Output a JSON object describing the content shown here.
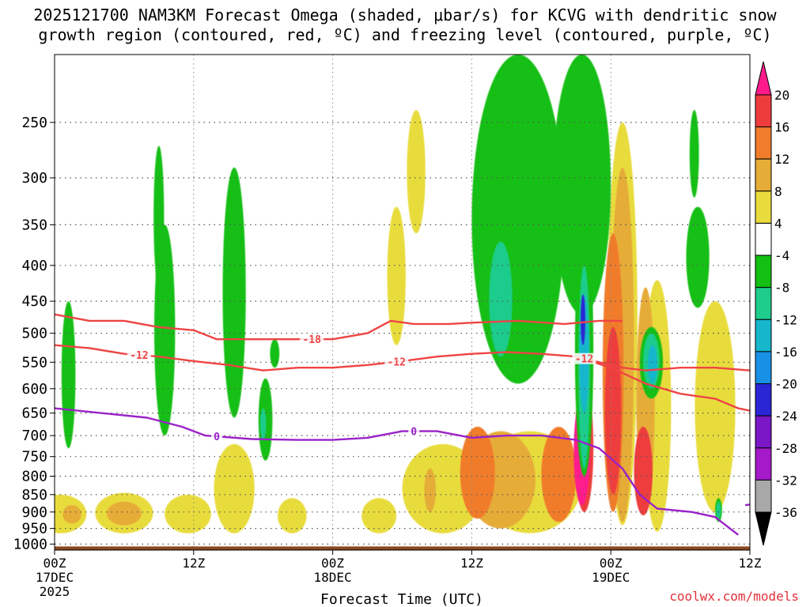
{
  "title_line1": "2025121700 NAM3KM Forecast Omega (shaded, μbar/s) for KCVG with dendritic snow",
  "title_line2": "growth region (contoured, red, ºC) and freezing level (contoured, purple, ºC)",
  "credit": "coolwx.com/models",
  "chart_data": {
    "type": "heatmap",
    "title": "2025121700 NAM3KM Forecast Omega (shaded, μbar/s) for KCVG with dendritic snow growth region (contoured, red, ºC) and freezing level (contoured, purple, ºC)",
    "xlabel": "Forecast Time (UTC)",
    "ylabel": "",
    "x_range_hours": [
      0,
      60
    ],
    "y_range_hpa": [
      200,
      1020
    ],
    "y_scale": "log-pressure",
    "x_ticks": [
      {
        "hour": 0,
        "label": "00Z",
        "sub": "17DEC",
        "sub2": "2025"
      },
      {
        "hour": 12,
        "label": "12Z",
        "sub": "",
        "sub2": ""
      },
      {
        "hour": 24,
        "label": "00Z",
        "sub": "18DEC",
        "sub2": ""
      },
      {
        "hour": 36,
        "label": "12Z",
        "sub": "",
        "sub2": ""
      },
      {
        "hour": 48,
        "label": "00Z",
        "sub": "19DEC",
        "sub2": ""
      },
      {
        "hour": 60,
        "label": "12Z",
        "sub": "",
        "sub2": ""
      }
    ],
    "y_ticks": [
      {
        "p": 250,
        "label": "250"
      },
      {
        "p": 300,
        "label": "300"
      },
      {
        "p": 350,
        "label": "350"
      },
      {
        "p": 400,
        "label": "400"
      },
      {
        "p": 450,
        "label": "450"
      },
      {
        "p": 500,
        "label": "500"
      },
      {
        "p": 550,
        "label": "550"
      },
      {
        "p": 600,
        "label": "600"
      },
      {
        "p": 650,
        "label": "650"
      },
      {
        "p": 700,
        "label": "700"
      },
      {
        "p": 750,
        "label": "750"
      },
      {
        "p": 800,
        "label": "800"
      },
      {
        "p": 850,
        "label": "850"
      },
      {
        "p": 900,
        "label": "900"
      },
      {
        "p": 950,
        "label": "950"
      },
      {
        "p": 1000,
        "label": "1000"
      }
    ],
    "grid": true,
    "legend": "colorbar-right",
    "colorbar": {
      "bands": [
        {
          "color": "#ff1a8c",
          "label": "20"
        },
        {
          "color": "#ee3c3c",
          "label": "16"
        },
        {
          "color": "#f07c2c",
          "label": "12"
        },
        {
          "color": "#e6ac38",
          "label": "8"
        },
        {
          "color": "#e8dc3c",
          "label": "4"
        },
        {
          "color": "#ffffff",
          "label": "-4"
        },
        {
          "color": "#12bf12",
          "label": "-8"
        },
        {
          "color": "#1ecc8c",
          "label": "-12"
        },
        {
          "color": "#16b6cc",
          "label": "-16"
        },
        {
          "color": "#1890e6",
          "label": "-20"
        },
        {
          "color": "#2a26d6",
          "label": "-24"
        },
        {
          "color": "#7a16c6",
          "label": "-28"
        },
        {
          "color": "#a41ac8",
          "label": "-32"
        },
        {
          "color": "#a8a8a8",
          "label": "-36"
        },
        {
          "color": "#000000",
          "label": ""
        }
      ]
    },
    "ground_level_hpa": 1008,
    "ground_color": "#8b4720",
    "omega_features": [
      {
        "cat": "pos1",
        "h": 0.5,
        "p": 900,
        "w": 4.5,
        "ptop": 850,
        "pbot": 965
      },
      {
        "cat": "pos1",
        "h": 6.0,
        "p": 900,
        "w": 5.0,
        "ptop": 845,
        "pbot": 965
      },
      {
        "cat": "pos1",
        "h": 11.5,
        "p": 900,
        "w": 4.0,
        "ptop": 850,
        "pbot": 965
      },
      {
        "cat": "pos1",
        "h": 15.5,
        "p": 880,
        "w": 3.5,
        "ptop": 720,
        "pbot": 965
      },
      {
        "cat": "pos1",
        "h": 20.5,
        "p": 910,
        "w": 2.5,
        "ptop": 860,
        "pbot": 965
      },
      {
        "cat": "pos2",
        "h": 6.0,
        "p": 905,
        "w": 3.0,
        "ptop": 870,
        "pbot": 940
      },
      {
        "cat": "pos2",
        "h": 1.5,
        "p": 905,
        "w": 1.6,
        "ptop": 880,
        "pbot": 935
      },
      {
        "cat": "pos1",
        "h": 28.0,
        "p": 905,
        "w": 3.0,
        "ptop": 860,
        "pbot": 965
      },
      {
        "cat": "pos1",
        "h": 29.5,
        "p": 420,
        "w": 1.6,
        "ptop": 330,
        "pbot": 520
      },
      {
        "cat": "pos1",
        "h": 31.2,
        "p": 300,
        "w": 1.6,
        "ptop": 240,
        "pbot": 360
      },
      {
        "cat": "pos1",
        "h": 33.5,
        "p": 860,
        "w": 7.0,
        "ptop": 720,
        "pbot": 965
      },
      {
        "cat": "pos1",
        "h": 41.0,
        "p": 840,
        "w": 9.0,
        "ptop": 690,
        "pbot": 965
      },
      {
        "cat": "pos1",
        "h": 49.0,
        "p": 540,
        "w": 2.6,
        "ptop": 250,
        "pbot": 940
      },
      {
        "cat": "pos1",
        "h": 52.0,
        "p": 560,
        "w": 2.4,
        "ptop": 420,
        "pbot": 960
      },
      {
        "cat": "pos1",
        "h": 57.0,
        "p": 600,
        "w": 3.5,
        "ptop": 450,
        "pbot": 900
      },
      {
        "cat": "pos2",
        "h": 32.4,
        "p": 860,
        "w": 1.0,
        "ptop": 780,
        "pbot": 900
      },
      {
        "cat": "pos2",
        "h": 38.5,
        "p": 800,
        "w": 6.0,
        "ptop": 690,
        "pbot": 950
      },
      {
        "cat": "pos3",
        "h": 36.5,
        "p": 780,
        "w": 3.0,
        "ptop": 680,
        "pbot": 920
      },
      {
        "cat": "pos3",
        "h": 43.5,
        "p": 820,
        "w": 3.0,
        "ptop": 680,
        "pbot": 930
      },
      {
        "cat": "pos2",
        "h": 49.0,
        "p": 560,
        "w": 2.0,
        "ptop": 290,
        "pbot": 930
      },
      {
        "cat": "pos2",
        "h": 51.0,
        "p": 620,
        "w": 1.6,
        "ptop": 430,
        "pbot": 900
      },
      {
        "cat": "pos3",
        "h": 48.2,
        "p": 580,
        "w": 1.8,
        "ptop": 360,
        "pbot": 900
      },
      {
        "cat": "pos4",
        "h": 48.2,
        "p": 600,
        "w": 1.4,
        "ptop": 490,
        "pbot": 850
      },
      {
        "cat": "pos4",
        "h": 45.7,
        "p": 710,
        "w": 1.6,
        "ptop": 590,
        "pbot": 900
      },
      {
        "cat": "pos5",
        "h": 45.5,
        "p": 760,
        "w": 1.4,
        "ptop": 620,
        "pbot": 880
      },
      {
        "cat": "pos5",
        "h": 50.8,
        "p": 820,
        "w": 1.2,
        "ptop": 700,
        "pbot": 900
      },
      {
        "cat": "pos4",
        "h": 50.8,
        "p": 800,
        "w": 1.6,
        "ptop": 680,
        "pbot": 910
      },
      {
        "cat": "neg1",
        "h": 1.2,
        "p": 600,
        "w": 1.2,
        "ptop": 450,
        "pbot": 730
      },
      {
        "cat": "neg1",
        "h": 9.0,
        "p": 360,
        "w": 0.9,
        "ptop": 270,
        "pbot": 430
      },
      {
        "cat": "neg1",
        "h": 9.5,
        "p": 570,
        "w": 1.8,
        "ptop": 350,
        "pbot": 700
      },
      {
        "cat": "neg1",
        "h": 15.5,
        "p": 460,
        "w": 2.0,
        "ptop": 290,
        "pbot": 660
      },
      {
        "cat": "neg1",
        "h": 18.2,
        "p": 650,
        "w": 1.2,
        "ptop": 580,
        "pbot": 760
      },
      {
        "cat": "neg1",
        "h": 19.0,
        "p": 535,
        "w": 0.8,
        "ptop": 510,
        "pbot": 560
      },
      {
        "cat": "neg2",
        "h": 18.0,
        "p": 670,
        "w": 0.5,
        "ptop": 640,
        "pbot": 710
      },
      {
        "cat": "neg1",
        "h": 40.0,
        "p": 380,
        "w": 8.0,
        "ptop": 200,
        "pbot": 590
      },
      {
        "cat": "neg1",
        "h": 45.5,
        "p": 300,
        "w": 5.0,
        "ptop": 200,
        "pbot": 470
      },
      {
        "cat": "neg2",
        "h": 38.5,
        "p": 440,
        "w": 2.0,
        "ptop": 370,
        "pbot": 540
      },
      {
        "cat": "neg1",
        "h": 45.7,
        "p": 520,
        "w": 1.6,
        "ptop": 350,
        "pbot": 800
      },
      {
        "cat": "neg2",
        "h": 45.7,
        "p": 520,
        "w": 1.0,
        "ptop": 400,
        "pbot": 780
      },
      {
        "cat": "neg3",
        "h": 45.7,
        "p": 470,
        "w": 0.8,
        "ptop": 440,
        "pbot": 650
      },
      {
        "cat": "neg4",
        "h": 45.6,
        "p": 470,
        "w": 0.4,
        "ptop": 440,
        "pbot": 520
      },
      {
        "cat": "neg1",
        "h": 51.5,
        "p": 550,
        "w": 2.0,
        "ptop": 490,
        "pbot": 620
      },
      {
        "cat": "neg2",
        "h": 51.5,
        "p": 550,
        "w": 1.4,
        "ptop": 500,
        "pbot": 600
      },
      {
        "cat": "neg3",
        "h": 51.6,
        "p": 550,
        "w": 0.8,
        "ptop": 520,
        "pbot": 590
      },
      {
        "cat": "neg1",
        "h": 55.5,
        "p": 400,
        "w": 2.0,
        "ptop": 330,
        "pbot": 460
      },
      {
        "cat": "neg1",
        "h": 55.2,
        "p": 280,
        "w": 0.8,
        "ptop": 240,
        "pbot": 320
      },
      {
        "cat": "neg1",
        "h": 57.3,
        "p": 890,
        "w": 0.6,
        "ptop": 860,
        "pbot": 930
      },
      {
        "cat": "neg2",
        "h": 57.3,
        "p": 890,
        "w": 0.4,
        "ptop": 870,
        "pbot": 920
      }
    ],
    "contours": [
      {
        "name": "dgz-upper",
        "color": "#ee4444",
        "label": "-18",
        "label_hour": 22.2,
        "points": [
          [
            0,
            470
          ],
          [
            3,
            480
          ],
          [
            6,
            480
          ],
          [
            9,
            490
          ],
          [
            12,
            495
          ],
          [
            14,
            510
          ],
          [
            17,
            510
          ],
          [
            20,
            510
          ],
          [
            24,
            510
          ],
          [
            27,
            500
          ],
          [
            29,
            480
          ],
          [
            31,
            485
          ],
          [
            34,
            485
          ],
          [
            36,
            483
          ],
          [
            40,
            480
          ],
          [
            44,
            485
          ],
          [
            47,
            480
          ],
          [
            49,
            480
          ]
        ]
      },
      {
        "name": "dgz-lower",
        "color": "#ee4444",
        "label": "-12",
        "label_hour": 7.3,
        "points": [
          [
            0,
            520
          ],
          [
            3,
            525
          ],
          [
            6,
            535
          ],
          [
            9,
            540
          ],
          [
            12,
            548
          ],
          [
            15,
            555
          ],
          [
            18,
            565
          ],
          [
            21,
            560
          ],
          [
            24,
            560
          ],
          [
            27,
            555
          ],
          [
            30,
            548
          ],
          [
            33,
            540
          ],
          [
            36,
            535
          ],
          [
            39,
            532
          ],
          [
            42,
            535
          ],
          [
            45,
            540
          ],
          [
            47,
            550
          ],
          [
            49,
            560
          ],
          [
            51,
            565
          ],
          [
            54,
            560
          ],
          [
            57,
            560
          ],
          [
            60,
            565
          ]
        ]
      },
      {
        "name": "dgz-lower-label2",
        "color": "#ee4444",
        "label": "-12",
        "label_hour": 29.5,
        "points": []
      },
      {
        "name": "dgz-lower-label3",
        "color": "#ee4444",
        "label": "-12",
        "label_hour": 45.7,
        "points": []
      },
      {
        "name": "dgz-mid-descend",
        "color": "#ee4444",
        "label": "",
        "label_hour": 0,
        "points": [
          [
            45,
            540
          ],
          [
            48,
            560
          ],
          [
            51,
            590
          ],
          [
            54,
            610
          ],
          [
            57,
            620
          ],
          [
            59,
            640
          ],
          [
            60,
            645
          ]
        ]
      },
      {
        "name": "freezing-level",
        "color": "#9a22c8",
        "label": "0",
        "label_hour": 14.0,
        "points": [
          [
            0,
            640
          ],
          [
            4,
            650
          ],
          [
            8,
            660
          ],
          [
            11,
            680
          ],
          [
            13,
            700
          ],
          [
            17,
            708
          ],
          [
            21,
            710
          ],
          [
            24,
            710
          ],
          [
            27,
            705
          ],
          [
            30,
            690
          ],
          [
            33,
            690
          ],
          [
            36,
            705
          ],
          [
            39,
            700
          ],
          [
            42,
            700
          ],
          [
            45,
            710
          ],
          [
            47,
            730
          ],
          [
            49,
            780
          ],
          [
            50.5,
            850
          ],
          [
            52,
            890
          ],
          [
            55,
            900
          ],
          [
            57,
            915
          ],
          [
            59,
            970
          ]
        ]
      },
      {
        "name": "freezing-label2",
        "color": "#9a22c8",
        "label": "0",
        "label_hour": 31.0,
        "points": []
      },
      {
        "name": "freezing-edge",
        "color": "#9a22c8",
        "label": "",
        "label_hour": 0,
        "points": [
          [
            59.6,
            880
          ],
          [
            60,
            878
          ]
        ]
      }
    ]
  }
}
